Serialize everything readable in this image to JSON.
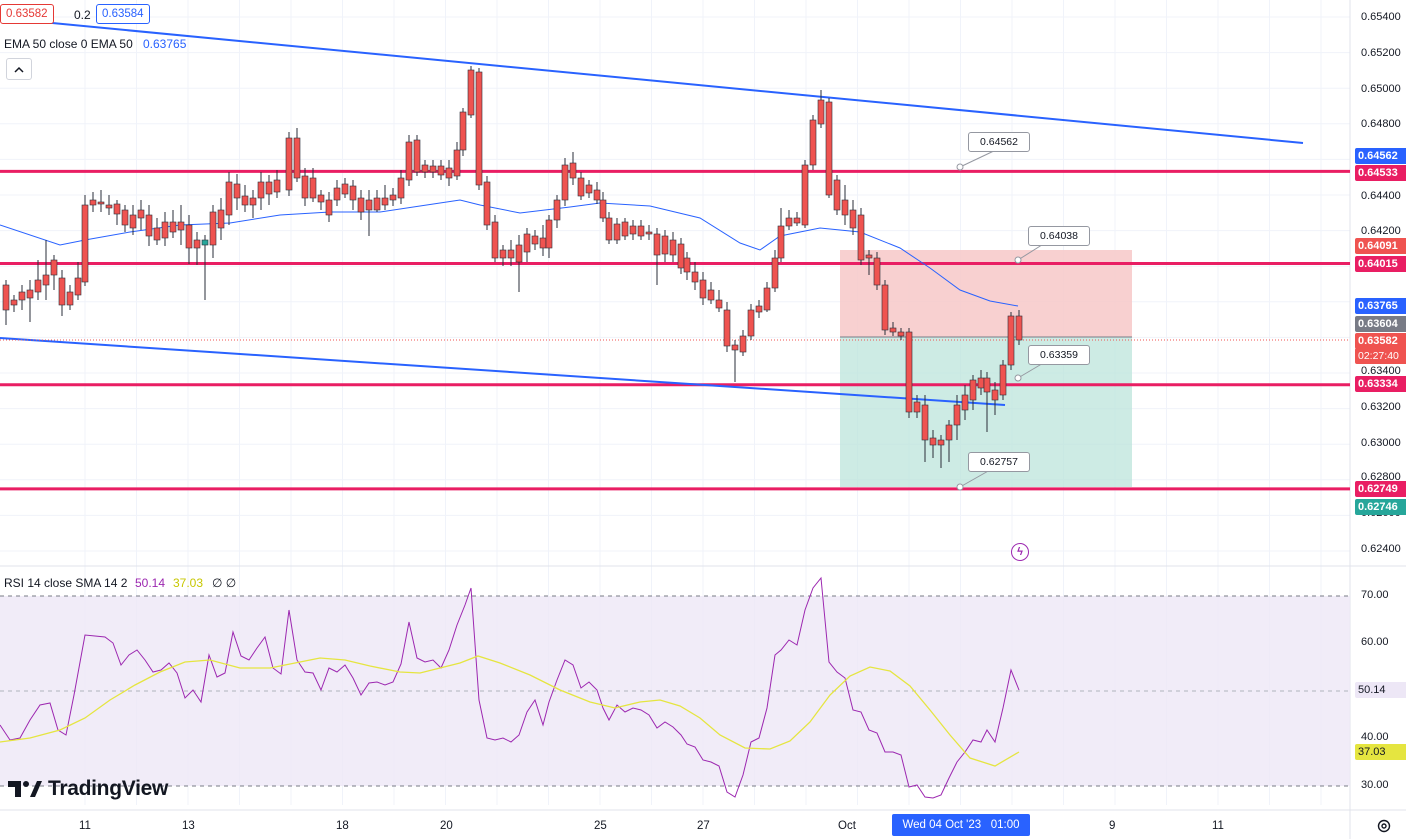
{
  "symbol_bar": {
    "bid": "0.63582",
    "spread": "0.2",
    "ask": "0.63584"
  },
  "ema_legend": {
    "label": "EMA 50 close 0 EMA 50",
    "value": "0.63765"
  },
  "collapse_icon": "chevron-up-icon",
  "rsi_legend": {
    "label": "RSI 14 close SMA 14 2",
    "rsi_value": "50.14",
    "sma_value": "37.03",
    "extra": "∅ ∅"
  },
  "price_axis": {
    "ticks": [
      "0.65400",
      "0.65200",
      "0.65000",
      "0.64800",
      "0.64400",
      "0.64200",
      "0.63400",
      "0.63200",
      "0.63000",
      "0.62800",
      "0.62600",
      "0.62400"
    ],
    "labels": {
      "alert_top": "0.64562",
      "level_1": "0.64533",
      "box_top": "0.64091",
      "level_2": "0.64015",
      "ema": "0.63765",
      "entry": "0.63604",
      "last": "0.63582",
      "countdown": "02:27:40",
      "level_3": "0.63334",
      "level_4": "0.62749",
      "box_bottom": "0.62746"
    }
  },
  "rsi_axis": {
    "ticks": [
      "70.00",
      "60.00",
      "40.00",
      "30.00"
    ],
    "rsi_label": "50.14",
    "sma_label": "37.03"
  },
  "notes": {
    "n1": "0.64562",
    "n2": "0.64038",
    "n3": "0.63359",
    "n4": "0.62757"
  },
  "time_axis": {
    "labels": [
      "11",
      "13",
      "18",
      "20",
      "25",
      "27",
      "Oct",
      "9",
      "11"
    ],
    "crosshair": "Wed 04 Oct '23   01:00"
  },
  "brand": {
    "logo_text": "TradingView"
  },
  "colors": {
    "bull": "#26a69a",
    "bear": "#ef5350",
    "level": "#e91e63",
    "trend": "#2962ff",
    "ema": "#2962ff",
    "rsi": "#9c27b0",
    "rsi_sma": "#e5e540"
  },
  "chart_data": {
    "type": "candlestick",
    "instrument_levels": [
      0.64533,
      0.64015,
      0.63334,
      0.62749
    ],
    "ema50_last": 0.63765,
    "last_price": 0.63582,
    "rsi_last": 50.14,
    "rsi_sma_last": 37.03,
    "rsi_bands": [
      70,
      30
    ]
  }
}
